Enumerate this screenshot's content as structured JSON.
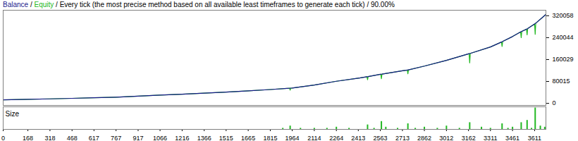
{
  "chart_data": [
    {
      "type": "line",
      "title": "Balance / Equity / Every tick (the most precise method based on all available least timeframes to generate each tick) / 90.00%",
      "x": [
        0,
        168,
        318,
        468,
        617,
        767,
        917,
        1066,
        1216,
        1366,
        1515,
        1665,
        1815,
        1946,
        1950,
        1954,
        1964,
        2114,
        2264,
        2413,
        2472,
        2476,
        2480,
        2563,
        2566,
        2570,
        2574,
        2713,
        2746,
        2750,
        2754,
        2862,
        3012,
        3162,
        3166,
        3170,
        3174,
        3311,
        3386,
        3390,
        3394,
        3461,
        3516,
        3520,
        3524,
        3556,
        3560,
        3564,
        3611,
        3615,
        3619,
        3688
      ],
      "series": [
        {
          "name": "Balance",
          "color": "#1a1a8c",
          "values": [
            12600,
            14500,
            16300,
            18200,
            20200,
            22300,
            26000,
            30200,
            33500,
            37000,
            41000,
            45500,
            50400,
            55300,
            55500,
            55600,
            56000,
            67000,
            80600,
            92000,
            97000,
            97300,
            97600,
            106000,
            106200,
            106500,
            106800,
            119000,
            121500,
            122000,
            122300,
            136000,
            157000,
            181000,
            181600,
            182000,
            182500,
            206000,
            224000,
            225000,
            226000,
            244000,
            261000,
            262000,
            263000,
            271000,
            272000,
            273000,
            290000,
            292000,
            293000,
            325000
          ]
        },
        {
          "name": "Equity",
          "color": "#22b822",
          "values": [
            12600,
            14500,
            16300,
            18200,
            20200,
            22300,
            26000,
            30200,
            33500,
            37000,
            41000,
            45500,
            50400,
            55300,
            48000,
            55600,
            56000,
            67000,
            80600,
            92000,
            97000,
            86000,
            97600,
            106000,
            106200,
            90000,
            106800,
            119000,
            121500,
            108000,
            122300,
            136000,
            157000,
            181000,
            181600,
            148000,
            182500,
            206000,
            224000,
            208000,
            226000,
            244000,
            261000,
            240000,
            263000,
            271000,
            250000,
            273000,
            290000,
            252000,
            293000,
            325000
          ]
        }
      ],
      "xlim": [
        0,
        3688
      ],
      "ylim": [
        -7560,
        340220
      ],
      "yticks": [
        0,
        80015,
        160029,
        240044,
        320058
      ],
      "tick_labels": "y"
    },
    {
      "type": "bar",
      "title": "Size",
      "x": [
        1900,
        1950,
        2020,
        2114,
        2200,
        2264,
        2350,
        2476,
        2520,
        2570,
        2600,
        2680,
        2750,
        2800,
        2862,
        2950,
        3012,
        3100,
        3170,
        3250,
        3311,
        3390,
        3430,
        3461,
        3520,
        3560,
        3590,
        3615,
        3650,
        3680
      ],
      "values": [
        0.5,
        1.5,
        0.5,
        0.5,
        0.5,
        1,
        0.5,
        2,
        0.5,
        3.5,
        1,
        0.5,
        2.5,
        0.5,
        1,
        0.5,
        1.5,
        0.5,
        3,
        1,
        0.5,
        2.5,
        0.5,
        1,
        3,
        4,
        0.5,
        9.5,
        1.5,
        1
      ],
      "color": "#22b822",
      "xlim": [
        0,
        3688
      ],
      "ylim": [
        0,
        10
      ],
      "xticks": [
        0,
        168,
        318,
        468,
        617,
        767,
        917,
        1066,
        1216,
        1366,
        1515,
        1665,
        1815,
        1964,
        2114,
        2264,
        2413,
        2563,
        2713,
        2862,
        3012,
        3162,
        3311,
        3461,
        3611
      ],
      "tick_labels": "x"
    }
  ]
}
